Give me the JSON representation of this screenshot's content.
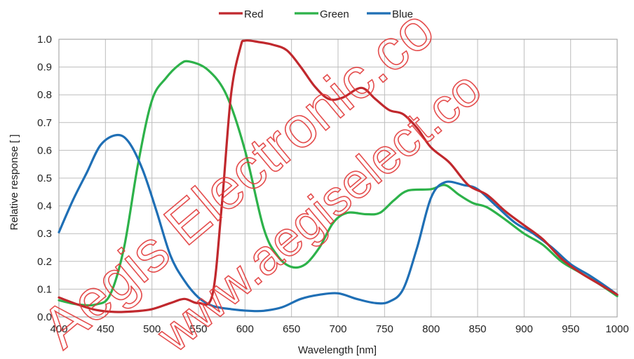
{
  "chart_data": {
    "type": "line",
    "xlabel": "Wavelength [nm]",
    "ylabel": "Relative response [ ]",
    "xlim": [
      400,
      1000
    ],
    "ylim": [
      0.0,
      1.0
    ],
    "x_ticks": [
      "400",
      "450",
      "500",
      "550",
      "600",
      "650",
      "700",
      "750",
      "800",
      "850",
      "900",
      "950",
      "1000"
    ],
    "y_ticks": [
      "0.0",
      "0.1",
      "0.2",
      "0.3",
      "0.4",
      "0.5",
      "0.6",
      "0.7",
      "0.8",
      "0.9",
      "1.0"
    ],
    "grid": true,
    "legend_position": "top-center",
    "series": [
      {
        "name": "Red",
        "color": "#c0282d",
        "points": [
          [
            400,
            0.07
          ],
          [
            420,
            0.045
          ],
          [
            440,
            0.025
          ],
          [
            460,
            0.018
          ],
          [
            480,
            0.02
          ],
          [
            500,
            0.028
          ],
          [
            520,
            0.05
          ],
          [
            535,
            0.065
          ],
          [
            550,
            0.05
          ],
          [
            565,
            0.08
          ],
          [
            575,
            0.4
          ],
          [
            585,
            0.8
          ],
          [
            595,
            0.97
          ],
          [
            600,
            0.995
          ],
          [
            615,
            0.99
          ],
          [
            630,
            0.98
          ],
          [
            645,
            0.96
          ],
          [
            660,
            0.9
          ],
          [
            675,
            0.83
          ],
          [
            690,
            0.785
          ],
          [
            705,
            0.79
          ],
          [
            725,
            0.825
          ],
          [
            740,
            0.785
          ],
          [
            755,
            0.745
          ],
          [
            770,
            0.73
          ],
          [
            785,
            0.68
          ],
          [
            800,
            0.61
          ],
          [
            820,
            0.555
          ],
          [
            840,
            0.475
          ],
          [
            860,
            0.44
          ],
          [
            880,
            0.38
          ],
          [
            900,
            0.33
          ],
          [
            920,
            0.28
          ],
          [
            940,
            0.21
          ],
          [
            960,
            0.16
          ],
          [
            980,
            0.12
          ],
          [
            1000,
            0.08
          ]
        ]
      },
      {
        "name": "Green",
        "color": "#2db24a",
        "points": [
          [
            400,
            0.06
          ],
          [
            420,
            0.045
          ],
          [
            440,
            0.045
          ],
          [
            455,
            0.08
          ],
          [
            470,
            0.25
          ],
          [
            485,
            0.55
          ],
          [
            500,
            0.78
          ],
          [
            515,
            0.86
          ],
          [
            530,
            0.91
          ],
          [
            540,
            0.92
          ],
          [
            560,
            0.89
          ],
          [
            580,
            0.8
          ],
          [
            600,
            0.6
          ],
          [
            620,
            0.32
          ],
          [
            635,
            0.22
          ],
          [
            650,
            0.18
          ],
          [
            665,
            0.19
          ],
          [
            680,
            0.25
          ],
          [
            695,
            0.34
          ],
          [
            710,
            0.375
          ],
          [
            730,
            0.37
          ],
          [
            745,
            0.375
          ],
          [
            760,
            0.42
          ],
          [
            775,
            0.455
          ],
          [
            800,
            0.46
          ],
          [
            815,
            0.475
          ],
          [
            830,
            0.44
          ],
          [
            845,
            0.41
          ],
          [
            860,
            0.395
          ],
          [
            880,
            0.35
          ],
          [
            900,
            0.3
          ],
          [
            920,
            0.26
          ],
          [
            940,
            0.2
          ],
          [
            960,
            0.16
          ],
          [
            980,
            0.12
          ],
          [
            1000,
            0.075
          ]
        ]
      },
      {
        "name": "Blue",
        "color": "#1f6fb5",
        "points": [
          [
            400,
            0.305
          ],
          [
            415,
            0.42
          ],
          [
            430,
            0.52
          ],
          [
            445,
            0.62
          ],
          [
            462,
            0.655
          ],
          [
            475,
            0.63
          ],
          [
            490,
            0.53
          ],
          [
            505,
            0.38
          ],
          [
            520,
            0.22
          ],
          [
            535,
            0.13
          ],
          [
            550,
            0.07
          ],
          [
            565,
            0.04
          ],
          [
            585,
            0.028
          ],
          [
            605,
            0.022
          ],
          [
            620,
            0.022
          ],
          [
            640,
            0.035
          ],
          [
            660,
            0.065
          ],
          [
            680,
            0.08
          ],
          [
            700,
            0.085
          ],
          [
            720,
            0.065
          ],
          [
            740,
            0.05
          ],
          [
            755,
            0.055
          ],
          [
            770,
            0.1
          ],
          [
            785,
            0.25
          ],
          [
            800,
            0.43
          ],
          [
            815,
            0.485
          ],
          [
            835,
            0.475
          ],
          [
            850,
            0.46
          ],
          [
            870,
            0.4
          ],
          [
            890,
            0.34
          ],
          [
            910,
            0.3
          ],
          [
            930,
            0.25
          ],
          [
            950,
            0.19
          ],
          [
            970,
            0.15
          ],
          [
            990,
            0.105
          ],
          [
            1000,
            0.08
          ]
        ]
      }
    ]
  },
  "watermark": [
    "Aegis Electronic.co",
    "www.aegiselect.co"
  ]
}
